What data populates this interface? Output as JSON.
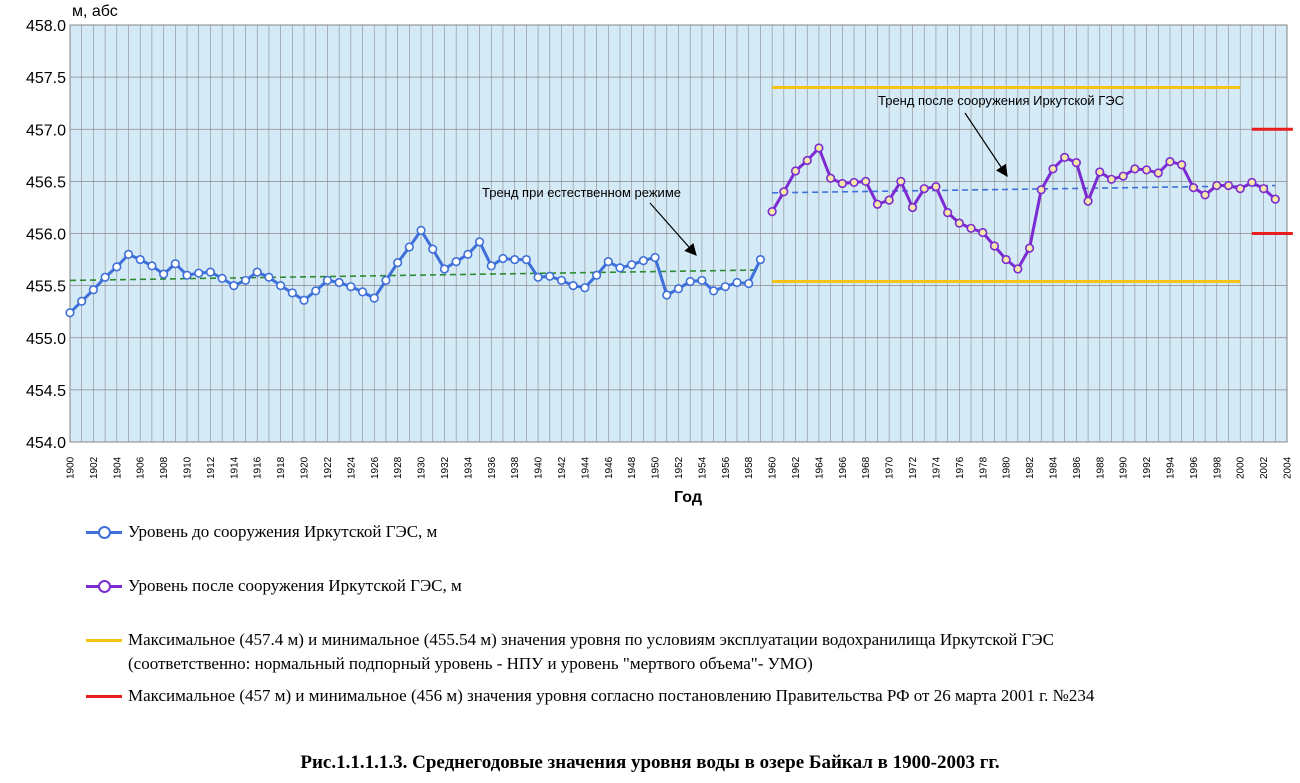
{
  "chart_data": {
    "type": "line",
    "y_unit_label": "м, абс",
    "xlabel": "Год",
    "ylim": [
      454.0,
      458.0
    ],
    "y_ticks": [
      "454.0",
      "454.5",
      "455.0",
      "455.5",
      "456.0",
      "456.5",
      "457.0",
      "457.5",
      "458.0"
    ],
    "xlim": [
      1900,
      2004
    ],
    "x_tick_step": 2,
    "grid": true,
    "series": [
      {
        "name": "Уровень до сооружения Иркутской ГЭС, м",
        "color": "#3f6fd8",
        "start_year": 1900,
        "values": [
          455.24,
          455.35,
          455.46,
          455.58,
          455.68,
          455.8,
          455.75,
          455.69,
          455.61,
          455.71,
          455.6,
          455.62,
          455.63,
          455.57,
          455.5,
          455.55,
          455.63,
          455.58,
          455.5,
          455.43,
          455.36,
          455.45,
          455.55,
          455.53,
          455.49,
          455.44,
          455.38,
          455.55,
          455.72,
          455.87,
          456.03,
          455.85,
          455.66,
          455.73,
          455.8,
          455.92,
          455.69,
          455.76,
          455.75,
          455.75,
          455.58,
          455.59,
          455.55,
          455.5,
          455.48,
          455.6,
          455.73,
          455.67,
          455.7,
          455.74,
          455.77,
          455.41,
          455.47,
          455.54,
          455.55,
          455.45,
          455.49,
          455.53,
          455.52,
          455.75
        ]
      },
      {
        "name": "Уровень после сооружения Иркутской ГЭС, м",
        "color": "#7b2bd1",
        "start_year": 1960,
        "values": [
          456.21,
          456.4,
          456.6,
          456.7,
          456.82,
          456.53,
          456.48,
          456.49,
          456.5,
          456.28,
          456.32,
          456.5,
          456.25,
          456.43,
          456.45,
          456.2,
          456.1,
          456.05,
          456.01,
          455.88,
          455.75,
          455.66,
          455.86,
          456.42,
          456.62,
          456.73,
          456.68,
          456.31,
          456.59,
          456.52,
          456.55,
          456.62,
          456.61,
          456.58,
          456.69,
          456.66,
          456.44,
          456.37,
          456.46,
          456.46,
          456.43,
          456.49,
          456.43,
          456.33
        ]
      }
    ],
    "trends": [
      {
        "label": "Тренд при естественном режиме",
        "from": [
          1900,
          455.55
        ],
        "to": [
          1959,
          455.65
        ],
        "color": "#2e8b2e"
      },
      {
        "label": "Тренд  после сооружения Иркутской ГЭС",
        "from": [
          1960,
          456.39
        ],
        "to": [
          2003,
          456.46
        ],
        "color": "#3f6fd8"
      }
    ],
    "reference_lines": [
      {
        "label": "Максимальное (457.4 м) и минимальное (455.54 м) значения уровня по условиям эксплуатации водохранилища Иркутской ГЭС",
        "label_cont": "(соответственно: нормальный подпорный уровень - НПУ и уровень \"мертвого объема\"- УМО)",
        "color": "#f5c218",
        "values": [
          457.4,
          455.54
        ],
        "x_range": [
          1960,
          2000
        ]
      },
      {
        "label": "Максимальное (457 м) и минимальное (456 м) значения уровня согласно постановлению Правительства РФ от 26 марта 2001 г. №234",
        "color": "#e81e1e",
        "values": [
          457.0,
          456.0
        ],
        "x_range": [
          2001,
          2004.5
        ]
      }
    ]
  },
  "caption": "Рис.1.1.1.1.3.  Среднегодовые значения уровня воды в озере Байкал в 1900-2003 гг."
}
